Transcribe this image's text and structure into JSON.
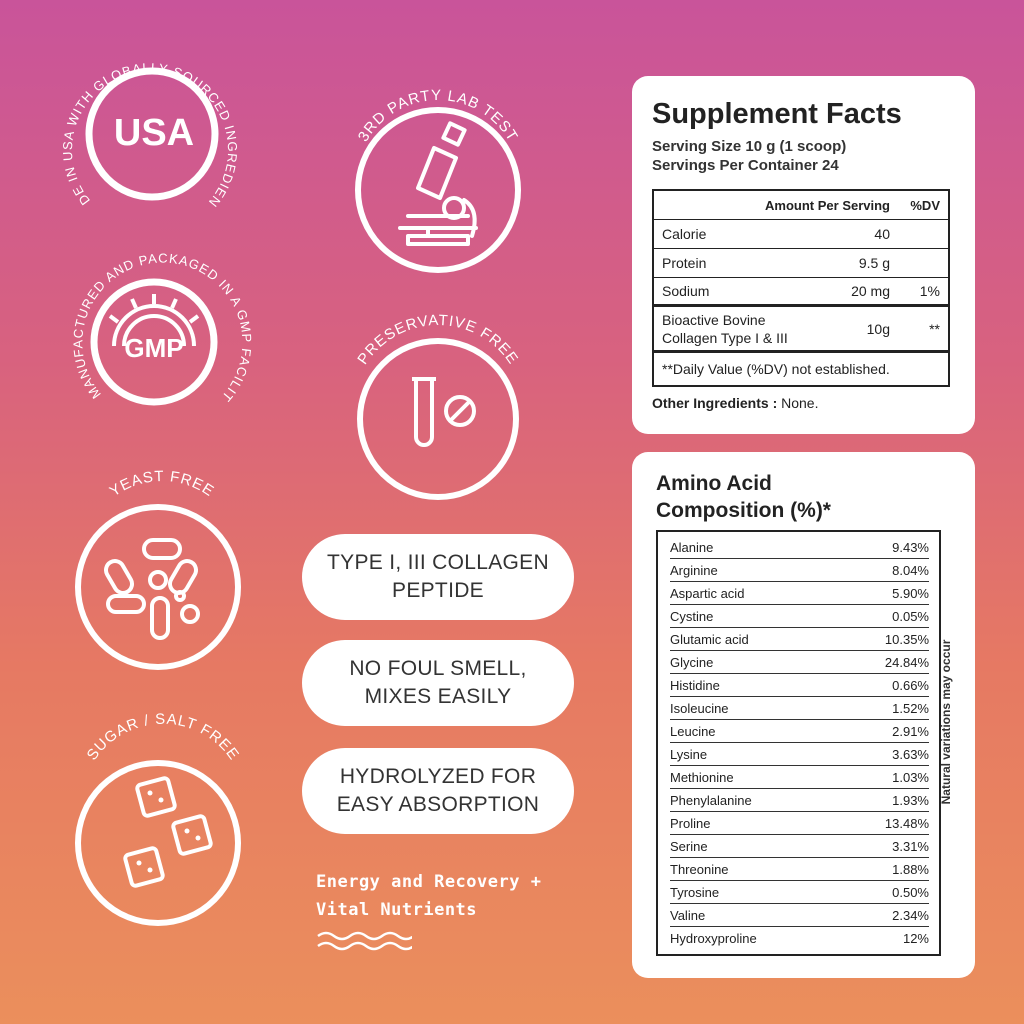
{
  "badges": {
    "usa": {
      "label": "USA",
      "arc": "MADE IN USA WITH GLOBALLY SOURCED INGREDIENTS"
    },
    "lab": {
      "arc": "3RD PARTY LAB TEST"
    },
    "gmp": {
      "label": "GMP",
      "arc": "MANUFACTURED AND PACKAGED IN A GMP FACILITY"
    },
    "preservative": {
      "arc": "PRESERVATIVE FREE"
    },
    "yeast": {
      "arc": "YEAST FREE"
    },
    "sugar": {
      "arc": "SUGAR / SALT FREE"
    }
  },
  "pills": [
    {
      "line1": "TYPE I, III COLLAGEN",
      "line2": "PEPTIDE"
    },
    {
      "line1": "NO FOUL SMELL,",
      "line2": "MIXES EASILY"
    },
    {
      "line1": "HYDROLYZED FOR",
      "line2": "EASY ABSORPTION"
    }
  ],
  "tagline": {
    "line1": "Energy and Recovery +",
    "line2": "Vital Nutrients"
  },
  "supplement_facts": {
    "title": "Supplement Facts",
    "serving_size": "Serving Size 10 g (1 scoop)",
    "servings_per_container": "Servings Per Container 24",
    "header": {
      "amount": "Amount Per Serving",
      "dv": "%DV"
    },
    "rows": [
      {
        "name": "Calorie",
        "amount": "40",
        "dv": ""
      },
      {
        "name": "Protein",
        "amount": "9.5 g",
        "dv": ""
      },
      {
        "name": "Sodium",
        "amount": "20 mg",
        "dv": "1%"
      },
      {
        "name_line1": "Bioactive Bovine",
        "name_line2": "Collagen Type I & III",
        "amount": "10g",
        "dv": "**"
      }
    ],
    "footnote": "**Daily Value (%DV) not established.",
    "other_label": "Other Ingredients :",
    "other_value": "None."
  },
  "amino_acids": {
    "title_line1": "Amino Acid",
    "title_line2": "Composition (%)*",
    "note": "Natural variations may occur",
    "rows": [
      {
        "name": "Alanine",
        "value": "9.43%"
      },
      {
        "name": "Arginine",
        "value": "8.04%"
      },
      {
        "name": "Aspartic acid",
        "value": "5.90%"
      },
      {
        "name": "Cystine",
        "value": "0.05%"
      },
      {
        "name": "Glutamic acid",
        "value": "10.35%"
      },
      {
        "name": "Glycine",
        "value": "24.84%"
      },
      {
        "name": "Histidine",
        "value": "0.66%"
      },
      {
        "name": "Isoleucine",
        "value": "1.52%"
      },
      {
        "name": "Leucine",
        "value": "2.91%"
      },
      {
        "name": "Lysine",
        "value": "3.63%"
      },
      {
        "name": "Methionine",
        "value": "1.03%"
      },
      {
        "name": "Phenylalanine",
        "value": "1.93%"
      },
      {
        "name": "Proline",
        "value": "13.48%"
      },
      {
        "name": "Serine",
        "value": "3.31%"
      },
      {
        "name": "Threonine",
        "value": "1.88%"
      },
      {
        "name": "Tyrosine",
        "value": "0.50%"
      },
      {
        "name": "Valine",
        "value": "2.34%"
      },
      {
        "name": "Hydroxyproline",
        "value": "12%"
      }
    ]
  }
}
